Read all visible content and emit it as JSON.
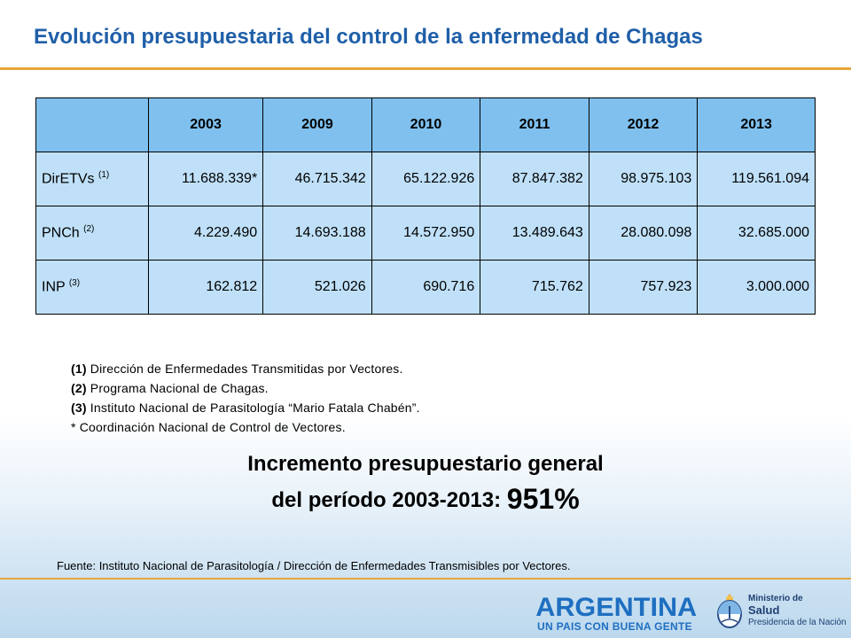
{
  "title": "Evolución presupuestaria del control de la enfermedad de Chagas",
  "table": {
    "header_blank": "",
    "years": [
      "2003",
      "2009",
      "2010",
      "2011",
      "2012",
      "2013"
    ],
    "rows": [
      {
        "label": "DirETVs",
        "note": "(1)",
        "values": [
          "11.688.339*",
          "46.715.342",
          "65.122.926",
          "87.847.382",
          "98.975.103",
          "119.561.094"
        ]
      },
      {
        "label": "PNCh",
        "note": "(2)",
        "values": [
          "4.229.490",
          "14.693.188",
          "14.572.950",
          "13.489.643",
          "28.080.098",
          "32.685.000"
        ]
      },
      {
        "label": "INP",
        "note": "(3)",
        "values": [
          "162.812",
          "521.026",
          "690.716",
          "715.762",
          "757.923",
          "3.000.000"
        ]
      }
    ]
  },
  "notes": [
    {
      "marker": "(1)",
      "text": " Dirección de Enfermedades  Transmitidas por Vectores."
    },
    {
      "marker": "(2)",
      "text": " Programa Nacional de Chagas."
    },
    {
      "marker": "(3)",
      "text": " Instituto Nacional de Parasitología  “Mario Fatala Chabén”."
    },
    {
      "marker": "",
      "text": "* Coordinación  Nacional de Control de Vectores."
    }
  ],
  "summary": {
    "line1": "Incremento presupuestario general",
    "line2_prefix": "del período 2003-2013: ",
    "percentage": "951%"
  },
  "source": "Fuente: Instituto Nacional de Parasitología / Dirección de Enfermedades Transmisibles por Vectores.",
  "footer": {
    "brand": "ARGENTINA",
    "tagline": "UN PAIS CON BUENA GENTE",
    "seal_icon": "coat-of-arms-icon",
    "ministry_line1": "Ministerio de",
    "ministry_line2": "Salud",
    "ministry_line3": "Presidencia de la Nación"
  },
  "colors": {
    "title": "#1f5fa8",
    "accent_rule": "#e4a63a",
    "table_header": "#7fc0ee",
    "table_cell": "#bfe0f8",
    "brand_blue": "#1e6fc0"
  }
}
